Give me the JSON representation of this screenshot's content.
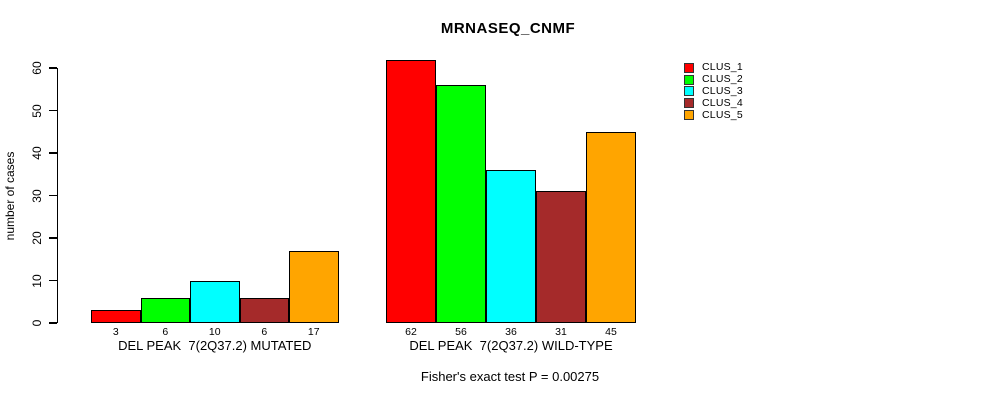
{
  "chart_data": {
    "type": "bar",
    "title": "MRNASEQ_CNMF",
    "ylabel": "number of cases",
    "xlabel": "",
    "ylim": [
      0,
      60
    ],
    "yticks": [
      0,
      10,
      20,
      30,
      40,
      50,
      60
    ],
    "grid": false,
    "legend_position": "right",
    "categories": [
      "DEL PEAK  7(2Q37.2) MUTATED",
      "DEL PEAK  7(2Q37.2) WILD-TYPE"
    ],
    "series": [
      {
        "name": "CLUS_1",
        "color": "#FF0000",
        "values": [
          3,
          62
        ]
      },
      {
        "name": "CLUS_2",
        "color": "#00FF00",
        "values": [
          6,
          56
        ]
      },
      {
        "name": "CLUS_3",
        "color": "#00FFFF",
        "values": [
          10,
          36
        ]
      },
      {
        "name": "CLUS_4",
        "color": "#A52A2A",
        "values": [
          6,
          31
        ]
      },
      {
        "name": "CLUS_5",
        "color": "#FFA500",
        "values": [
          17,
          45
        ]
      }
    ],
    "bar_value_labels": [
      [
        "3",
        "6",
        "10",
        "6",
        "17"
      ],
      [
        "62",
        "56",
        "36",
        "31",
        "45"
      ]
    ],
    "annotation": "Fisher's exact test P = 0.00275"
  }
}
